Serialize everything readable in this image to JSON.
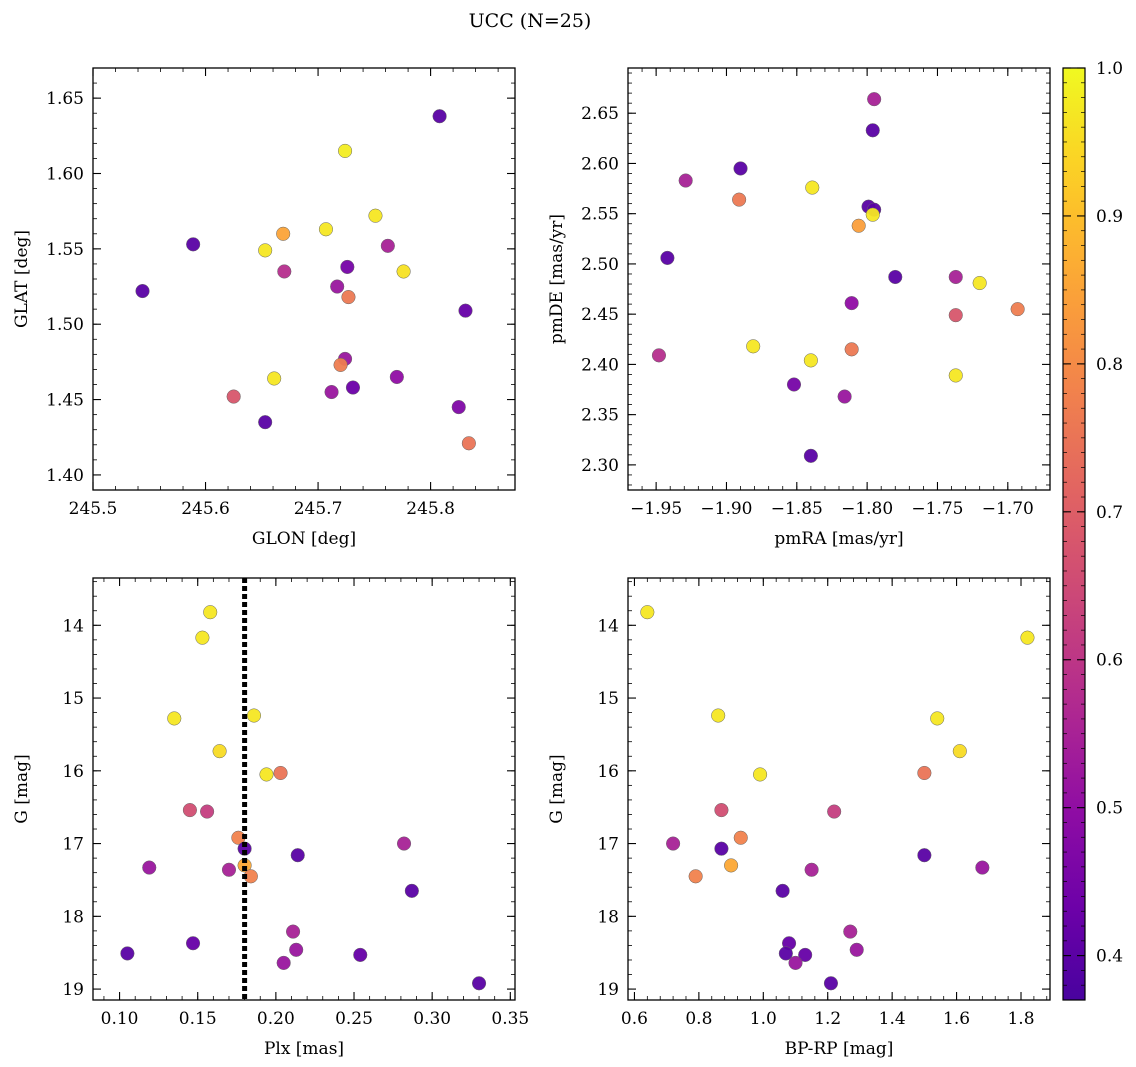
{
  "figure": {
    "title": "UCC (N=25)"
  },
  "colorbar": {
    "min": 0.37,
    "max": 1.0,
    "ticks": [
      "0.4",
      "0.5",
      "0.6",
      "0.7",
      "0.8",
      "0.9",
      "1.0"
    ],
    "tick_values": [
      0.4,
      0.5,
      0.6,
      0.7,
      0.8,
      0.9,
      1.0
    ],
    "colormap": "plasma"
  },
  "chart_data": [
    {
      "type": "scatter",
      "xlabel": "GLON [deg]",
      "ylabel": "GLAT [deg]",
      "xlim": [
        245.5,
        245.875
      ],
      "ylim": [
        1.39,
        1.67
      ],
      "xticks": [
        245.5,
        245.6,
        245.7,
        245.8
      ],
      "xtick_labels": [
        "245.5",
        "245.6",
        "245.7",
        "245.8"
      ],
      "yticks": [
        1.4,
        1.45,
        1.5,
        1.55,
        1.6,
        1.65
      ],
      "ytick_labels": [
        "1.40",
        "1.45",
        "1.50",
        "1.55",
        "1.60",
        "1.65"
      ],
      "y_inverted": false,
      "points": [
        {
          "x": 245.808,
          "y": 1.638,
          "c": 0.4
        },
        {
          "x": 245.724,
          "y": 1.615,
          "c": 0.98
        },
        {
          "x": 245.751,
          "y": 1.572,
          "c": 0.97
        },
        {
          "x": 245.707,
          "y": 1.563,
          "c": 0.97
        },
        {
          "x": 245.669,
          "y": 1.56,
          "c": 0.85
        },
        {
          "x": 245.589,
          "y": 1.553,
          "c": 0.4
        },
        {
          "x": 245.762,
          "y": 1.552,
          "c": 0.55
        },
        {
          "x": 245.653,
          "y": 1.549,
          "c": 0.97
        },
        {
          "x": 245.726,
          "y": 1.538,
          "c": 0.45
        },
        {
          "x": 245.67,
          "y": 1.535,
          "c": 0.58
        },
        {
          "x": 245.776,
          "y": 1.535,
          "c": 0.96
        },
        {
          "x": 245.544,
          "y": 1.522,
          "c": 0.4
        },
        {
          "x": 245.717,
          "y": 1.525,
          "c": 0.52
        },
        {
          "x": 245.727,
          "y": 1.518,
          "c": 0.76
        },
        {
          "x": 245.831,
          "y": 1.509,
          "c": 0.42
        },
        {
          "x": 245.724,
          "y": 1.477,
          "c": 0.52
        },
        {
          "x": 245.72,
          "y": 1.473,
          "c": 0.77
        },
        {
          "x": 245.77,
          "y": 1.465,
          "c": 0.5
        },
        {
          "x": 245.661,
          "y": 1.464,
          "c": 0.97
        },
        {
          "x": 245.712,
          "y": 1.455,
          "c": 0.52
        },
        {
          "x": 245.731,
          "y": 1.458,
          "c": 0.43
        },
        {
          "x": 245.625,
          "y": 1.452,
          "c": 0.68
        },
        {
          "x": 245.825,
          "y": 1.445,
          "c": 0.47
        },
        {
          "x": 245.653,
          "y": 1.435,
          "c": 0.4
        },
        {
          "x": 245.834,
          "y": 1.421,
          "c": 0.75
        }
      ]
    },
    {
      "type": "scatter",
      "xlabel": "pmRA [mas/yr]",
      "ylabel": "pmDE [mas/yr]",
      "xlim": [
        -1.97,
        -1.67
      ],
      "ylim": [
        2.275,
        2.695
      ],
      "xticks": [
        -1.95,
        -1.9,
        -1.85,
        -1.8,
        -1.75,
        -1.7
      ],
      "xtick_labels": [
        "−1.95",
        "−1.90",
        "−1.85",
        "−1.80",
        "−1.75",
        "−1.70"
      ],
      "yticks": [
        2.3,
        2.35,
        2.4,
        2.45,
        2.5,
        2.55,
        2.6,
        2.65
      ],
      "ytick_labels": [
        "2.30",
        "2.35",
        "2.40",
        "2.45",
        "2.50",
        "2.55",
        "2.60",
        "2.65"
      ],
      "y_inverted": false,
      "points": [
        {
          "x": -1.795,
          "y": 2.664,
          "c": 0.55
        },
        {
          "x": -1.796,
          "y": 2.633,
          "c": 0.4
        },
        {
          "x": -1.89,
          "y": 2.595,
          "c": 0.4
        },
        {
          "x": -1.929,
          "y": 2.583,
          "c": 0.55
        },
        {
          "x": -1.839,
          "y": 2.576,
          "c": 0.97
        },
        {
          "x": -1.891,
          "y": 2.564,
          "c": 0.76
        },
        {
          "x": -1.799,
          "y": 2.557,
          "c": 0.4
        },
        {
          "x": -1.795,
          "y": 2.554,
          "c": 0.4
        },
        {
          "x": -1.796,
          "y": 2.549,
          "c": 0.97
        },
        {
          "x": -1.806,
          "y": 2.538,
          "c": 0.84
        },
        {
          "x": -1.942,
          "y": 2.506,
          "c": 0.4
        },
        {
          "x": -1.78,
          "y": 2.487,
          "c": 0.4
        },
        {
          "x": -1.737,
          "y": 2.487,
          "c": 0.55
        },
        {
          "x": -1.72,
          "y": 2.481,
          "c": 0.97
        },
        {
          "x": -1.811,
          "y": 2.461,
          "c": 0.5
        },
        {
          "x": -1.693,
          "y": 2.455,
          "c": 0.77
        },
        {
          "x": -1.737,
          "y": 2.449,
          "c": 0.68
        },
        {
          "x": -1.881,
          "y": 2.418,
          "c": 0.97
        },
        {
          "x": -1.811,
          "y": 2.415,
          "c": 0.76
        },
        {
          "x": -1.948,
          "y": 2.409,
          "c": 0.58
        },
        {
          "x": -1.84,
          "y": 2.404,
          "c": 0.97
        },
        {
          "x": -1.737,
          "y": 2.389,
          "c": 0.97
        },
        {
          "x": -1.852,
          "y": 2.38,
          "c": 0.45
        },
        {
          "x": -1.816,
          "y": 2.368,
          "c": 0.52
        },
        {
          "x": -1.84,
          "y": 2.309,
          "c": 0.4
        }
      ]
    },
    {
      "type": "scatter",
      "xlabel": "Plx [mas]",
      "ylabel": "G [mag]",
      "xlim": [
        0.083,
        0.353
      ],
      "ylim": [
        19.15,
        13.35
      ],
      "xticks": [
        0.1,
        0.15,
        0.2,
        0.25,
        0.3,
        0.35
      ],
      "xtick_labels": [
        "0.10",
        "0.15",
        "0.20",
        "0.25",
        "0.30",
        "0.35"
      ],
      "yticks": [
        14,
        15,
        16,
        17,
        18,
        19
      ],
      "ytick_labels": [
        "14",
        "15",
        "16",
        "17",
        "18",
        "19"
      ],
      "y_inverted": true,
      "vline": 0.18,
      "points": [
        {
          "x": 0.158,
          "y": 13.82,
          "c": 0.97
        },
        {
          "x": 0.153,
          "y": 14.17,
          "c": 0.97
        },
        {
          "x": 0.186,
          "y": 15.24,
          "c": 0.97
        },
        {
          "x": 0.135,
          "y": 15.28,
          "c": 0.97
        },
        {
          "x": 0.164,
          "y": 15.73,
          "c": 0.95
        },
        {
          "x": 0.203,
          "y": 16.03,
          "c": 0.75
        },
        {
          "x": 0.194,
          "y": 16.05,
          "c": 0.97
        },
        {
          "x": 0.145,
          "y": 16.54,
          "c": 0.66
        },
        {
          "x": 0.156,
          "y": 16.56,
          "c": 0.62
        },
        {
          "x": 0.176,
          "y": 16.92,
          "c": 0.78
        },
        {
          "x": 0.282,
          "y": 17.0,
          "c": 0.55
        },
        {
          "x": 0.18,
          "y": 17.07,
          "c": 0.4
        },
        {
          "x": 0.214,
          "y": 17.16,
          "c": 0.4
        },
        {
          "x": 0.18,
          "y": 17.3,
          "c": 0.86
        },
        {
          "x": 0.119,
          "y": 17.33,
          "c": 0.52
        },
        {
          "x": 0.17,
          "y": 17.36,
          "c": 0.55
        },
        {
          "x": 0.184,
          "y": 17.45,
          "c": 0.78
        },
        {
          "x": 0.287,
          "y": 17.65,
          "c": 0.4
        },
        {
          "x": 0.211,
          "y": 18.21,
          "c": 0.55
        },
        {
          "x": 0.147,
          "y": 18.37,
          "c": 0.42
        },
        {
          "x": 0.213,
          "y": 18.46,
          "c": 0.52
        },
        {
          "x": 0.105,
          "y": 18.51,
          "c": 0.4
        },
        {
          "x": 0.254,
          "y": 18.53,
          "c": 0.42
        },
        {
          "x": 0.205,
          "y": 18.64,
          "c": 0.52
        },
        {
          "x": 0.33,
          "y": 18.92,
          "c": 0.4
        }
      ]
    },
    {
      "type": "scatter",
      "xlabel": "BP-RP [mag]",
      "ylabel": "G [mag]",
      "xlim": [
        0.58,
        1.89
      ],
      "ylim": [
        19.15,
        13.35
      ],
      "xticks": [
        0.6,
        0.8,
        1.0,
        1.2,
        1.4,
        1.6,
        1.8
      ],
      "xtick_labels": [
        "0.6",
        "0.8",
        "1.0",
        "1.2",
        "1.4",
        "1.6",
        "1.8"
      ],
      "yticks": [
        14,
        15,
        16,
        17,
        18,
        19
      ],
      "ytick_labels": [
        "14",
        "15",
        "16",
        "17",
        "18",
        "19"
      ],
      "y_inverted": true,
      "points": [
        {
          "x": 0.64,
          "y": 13.82,
          "c": 0.97
        },
        {
          "x": 1.82,
          "y": 14.17,
          "c": 0.97
        },
        {
          "x": 0.86,
          "y": 15.24,
          "c": 0.97
        },
        {
          "x": 1.54,
          "y": 15.28,
          "c": 0.97
        },
        {
          "x": 1.61,
          "y": 15.73,
          "c": 0.95
        },
        {
          "x": 1.5,
          "y": 16.03,
          "c": 0.75
        },
        {
          "x": 0.99,
          "y": 16.05,
          "c": 0.97
        },
        {
          "x": 0.87,
          "y": 16.54,
          "c": 0.66
        },
        {
          "x": 1.22,
          "y": 16.56,
          "c": 0.62
        },
        {
          "x": 0.93,
          "y": 16.92,
          "c": 0.78
        },
        {
          "x": 0.72,
          "y": 17.0,
          "c": 0.55
        },
        {
          "x": 0.87,
          "y": 17.07,
          "c": 0.4
        },
        {
          "x": 1.5,
          "y": 17.16,
          "c": 0.4
        },
        {
          "x": 0.9,
          "y": 17.3,
          "c": 0.86
        },
        {
          "x": 1.68,
          "y": 17.33,
          "c": 0.52
        },
        {
          "x": 1.15,
          "y": 17.36,
          "c": 0.55
        },
        {
          "x": 0.79,
          "y": 17.45,
          "c": 0.78
        },
        {
          "x": 1.06,
          "y": 17.65,
          "c": 0.4
        },
        {
          "x": 1.27,
          "y": 18.21,
          "c": 0.55
        },
        {
          "x": 1.08,
          "y": 18.37,
          "c": 0.42
        },
        {
          "x": 1.29,
          "y": 18.46,
          "c": 0.52
        },
        {
          "x": 1.07,
          "y": 18.51,
          "c": 0.4
        },
        {
          "x": 1.13,
          "y": 18.53,
          "c": 0.42
        },
        {
          "x": 1.1,
          "y": 18.64,
          "c": 0.52
        },
        {
          "x": 1.21,
          "y": 18.92,
          "c": 0.4
        }
      ]
    }
  ]
}
